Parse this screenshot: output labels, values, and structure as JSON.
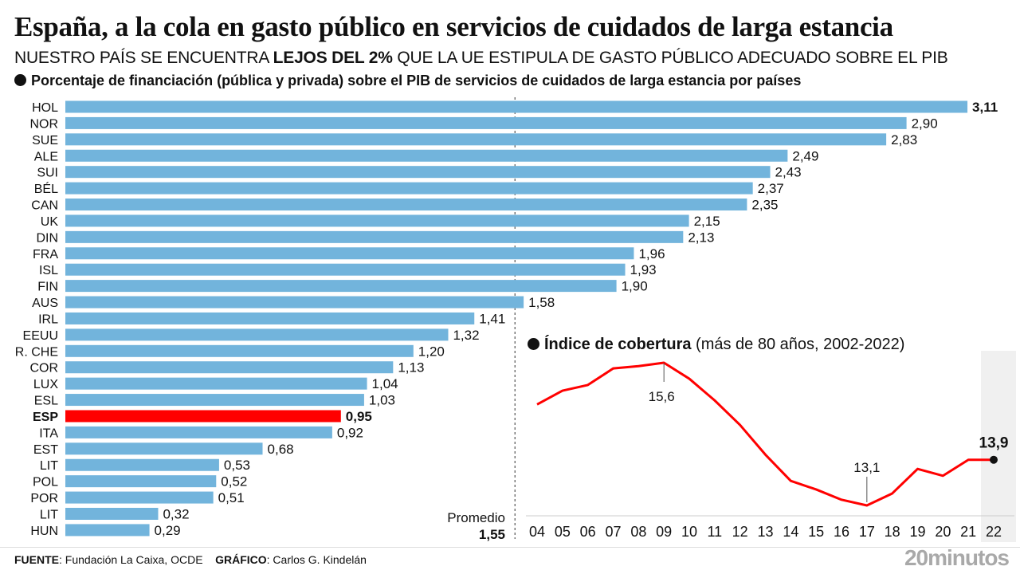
{
  "header": {
    "title": "España, a la cola en gasto público en servicios de cuidados de larga estancia",
    "subtitle_pre": "NUESTRO PAÍS SE ENCUENTRA ",
    "subtitle_bold": "LEJOS DEL 2%",
    "subtitle_post": " QUE LA UE ESTIPULA DE GASTO PÚBLICO ADECUADO SOBRE EL PIB"
  },
  "footer": {
    "source_label": "FUENTE",
    "source": ": Fundación La Caixa, OCDE",
    "graphic_label": "GRÁFICO",
    "graphic": ": Carlos G. Kindelán",
    "logo": "20minutos"
  },
  "colors": {
    "bar": "#72b4dc",
    "highlight": "#ff0000",
    "line": "#ff0000"
  },
  "chart_data": [
    {
      "type": "bar",
      "orientation": "horizontal",
      "title": "Porcentaje de financiación (pública y privada) sobre el PIB de servicios de cuidados de larga estancia por países",
      "categories": [
        "HOL",
        "NOR",
        "SUE",
        "ALE",
        "SUI",
        "BÉL",
        "CAN",
        "UK",
        "DIN",
        "FRA",
        "ISL",
        "FIN",
        "AUS",
        "IRL",
        "EEUU",
        "R. CHE",
        "COR",
        "LUX",
        "ESL",
        "ESP",
        "ITA",
        "EST",
        "LIT",
        "POL",
        "POR",
        "LIT",
        "HUN"
      ],
      "values": [
        3.11,
        2.9,
        2.83,
        2.49,
        2.43,
        2.37,
        2.35,
        2.15,
        2.13,
        1.96,
        1.93,
        1.9,
        1.58,
        1.41,
        1.32,
        1.2,
        1.13,
        1.04,
        1.03,
        0.95,
        0.92,
        0.68,
        0.53,
        0.52,
        0.51,
        0.32,
        0.29
      ],
      "labels": [
        "3,11",
        "2,90",
        "2,83",
        "2,49",
        "2,43",
        "2,37",
        "2,35",
        "2,15",
        "2,13",
        "1,96",
        "1,93",
        "1,90",
        "1,58",
        "1,41",
        "1,32",
        "1,20",
        "1,13",
        "1,04",
        "1,03",
        "0,95",
        "0,92",
        "0,68",
        "0,53",
        "0,52",
        "0,51",
        "0,32",
        "0,29"
      ],
      "highlight": "ESP",
      "bold_labels": [
        "HOL",
        "ESP"
      ],
      "reference_line": {
        "value": 1.55,
        "label": "Promedio",
        "value_label": "1,55",
        "style": "dashed"
      }
    },
    {
      "type": "line",
      "title_bold": "Índice de cobertura",
      "title_rest": " (más de 80 años, 2002-2022)",
      "x": [
        "04",
        "05",
        "06",
        "07",
        "08",
        "09",
        "10",
        "11",
        "12",
        "13",
        "14",
        "15",
        "16",
        "17",
        "18",
        "19",
        "20",
        "21",
        "22"
      ],
      "y": [
        14.87,
        15.11,
        15.21,
        15.5,
        15.54,
        15.6,
        15.32,
        14.94,
        14.51,
        13.99,
        13.53,
        13.38,
        13.2,
        13.1,
        13.31,
        13.74,
        13.62,
        13.9,
        13.9
      ],
      "annotations": [
        {
          "x": "09",
          "label": "15,6"
        },
        {
          "x": "17",
          "label": "13,1"
        },
        {
          "x": "22",
          "label": "13,9",
          "bold": true,
          "marker": true
        }
      ]
    }
  ]
}
